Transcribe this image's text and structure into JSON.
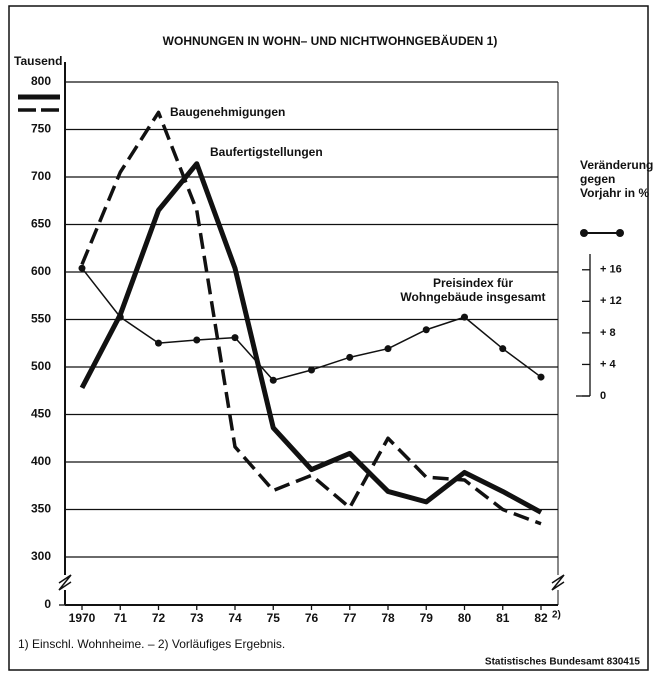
{
  "chart_data": {
    "type": "line",
    "title": "WOHNUNGEN IN WOHN– UND NICHTWOHNGEBÄUDEN 1)",
    "y_label": "Tausend",
    "y2_label": "Veränderung gegen Vorjahr in %",
    "categories": [
      "1970",
      "71",
      "72",
      "73",
      "74",
      "75",
      "76",
      "77",
      "78",
      "79",
      "80",
      "81",
      "82"
    ],
    "category_note": "2)",
    "series": [
      {
        "name": "Baugenehmigungen",
        "color": "#111111",
        "style": "dashed",
        "values": [
          608,
          705,
          768,
          665,
          416,
          370,
          386,
          352,
          425,
          384,
          381,
          350,
          335
        ]
      },
      {
        "name": "Baufertigstellungen",
        "color": "#111111",
        "style": "solid",
        "values": [
          478,
          555,
          665,
          714,
          604,
          436,
          392,
          409,
          369,
          358,
          389,
          369,
          347
        ]
      },
      {
        "name": "Preisindex für Wohngebäude insgesamt",
        "color": "#111111",
        "style": "dotted-line",
        "axis": "y2",
        "values": [
          16.2,
          10.0,
          6.7,
          7.1,
          7.4,
          2.0,
          3.3,
          4.9,
          6.0,
          8.4,
          10.0,
          6.0,
          2.4
        ]
      }
    ],
    "ylim": [
      300,
      800
    ],
    "yticks": [
      0,
      300,
      350,
      400,
      450,
      500,
      550,
      600,
      650,
      700,
      750,
      800
    ],
    "axis_break": true,
    "y2lim": [
      0,
      18
    ],
    "y2ticks": [
      0,
      {
        "value": 4,
        "label": "+ 4"
      },
      {
        "value": 8,
        "label": "+ 8"
      },
      {
        "value": 12,
        "label": "+ 12"
      },
      {
        "value": 16,
        "label": "+ 16"
      }
    ],
    "grid": true,
    "footnote": "1) Einschl. Wohnheime. – 2) Vorläufiges Ergebnis.",
    "source": "Statistisches Bundesamt 830415"
  }
}
